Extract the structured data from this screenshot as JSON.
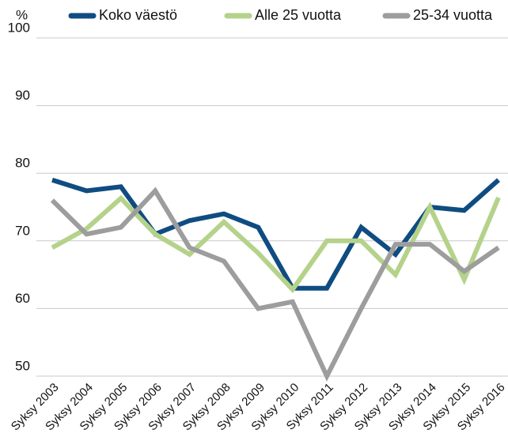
{
  "chart_data": {
    "type": "line",
    "y_unit": "%",
    "categories": [
      "Syksy 2003",
      "Syksy 2004",
      "Syksy 2005",
      "Syksy 2006",
      "Syksy 2007",
      "Syksy 2008",
      "Syksy 2009",
      "Syksy 2010",
      "Syksy 2011",
      "Syksy 2012",
      "Syksy 2013",
      "Syksy 2014",
      "Syksy 2015",
      "Syksy 2016"
    ],
    "series": [
      {
        "name": "Koko väestö",
        "color": "#0f4c81",
        "values": [
          79,
          77.4,
          78,
          71,
          73,
          74,
          72,
          63,
          63,
          72,
          68,
          75,
          74.5,
          79
        ]
      },
      {
        "name": "Alle 25 vuotta",
        "color": "#b5d28a",
        "values": [
          69,
          71.8,
          76.3,
          71,
          68,
          72.8,
          68.2,
          62.8,
          70,
          70,
          65,
          75,
          64.3,
          76.4
        ]
      },
      {
        "name": "25-34 vuotta",
        "color": "#9d9d9e",
        "values": [
          76,
          71,
          72,
          77.4,
          69,
          67,
          60,
          61,
          50,
          60,
          69.5,
          69.5,
          65.5,
          69
        ]
      }
    ],
    "ylim": [
      50,
      100
    ],
    "yticks": [
      50,
      60,
      70,
      80,
      90,
      100
    ],
    "grid": true,
    "legend": "top"
  }
}
